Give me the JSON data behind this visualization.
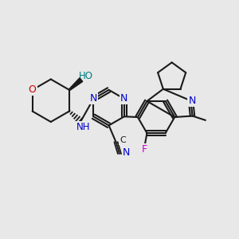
{
  "background": "#e8e8e8",
  "black": "#1a1a1a",
  "blue": "#0000cc",
  "red": "#cc0000",
  "teal": "#008080",
  "magenta": "#cc00cc",
  "lw": 1.5,
  "xlim": [
    0,
    10
  ],
  "ylim": [
    0,
    10
  ],
  "figsize": [
    3.0,
    3.0
  ],
  "dpi": 100
}
